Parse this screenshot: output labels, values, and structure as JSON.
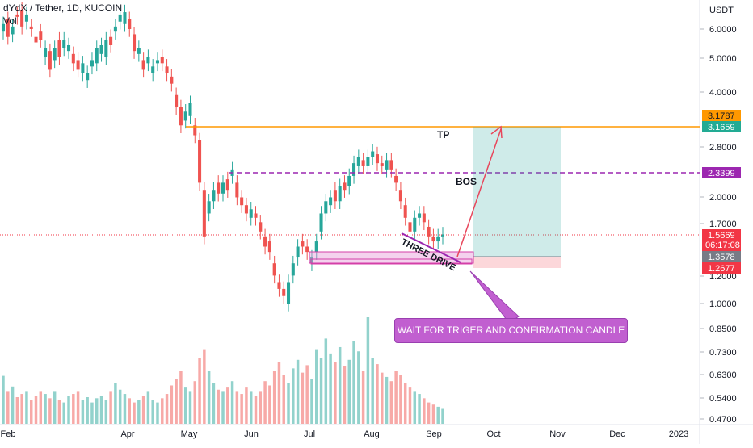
{
  "header": {
    "symbol_line": "dYdX / Tether, 1D, KUCOIN",
    "volume_line": "Vol"
  },
  "colors": {
    "up": "#26a69a",
    "down": "#ef5350",
    "tp_line": "#ff9800",
    "bos_line": "#9c27b0",
    "current_price": "#f23645",
    "stop_label": "#f23645",
    "entry_label": "#787b86",
    "tp_label": "#22ab94",
    "callout": "#c15fd0"
  },
  "chart_data": {
    "type": "candlestick",
    "symbol": "dYdX / Tether",
    "interval": "1D",
    "exchange": "KUCOIN",
    "y_scale": "log",
    "y_unit": "USDT",
    "y_ticks": [
      "6.0000",
      "5.0000",
      "4.0000",
      "2.8000",
      "2.0000",
      "1.7000",
      "1.2000",
      "1.0000",
      "0.8500",
      "0.7300",
      "0.6300",
      "0.5400",
      "0.4700"
    ],
    "x_ticks": [
      "Feb",
      "Apr",
      "May",
      "Jun",
      "Jul",
      "Aug",
      "Sep",
      "Oct",
      "Nov",
      "Dec",
      "2023"
    ],
    "price_labels": {
      "tp_upper": "3.1787",
      "tp": "3.1659",
      "bos": "2.3399",
      "current": "1.5669",
      "countdown": "06:17:08",
      "entry": "1.3578",
      "stop": "1.2677"
    },
    "annotations": {
      "tp": "TP",
      "bos": "BOS",
      "three_drive": "THREE DRIVE",
      "callout": "WAIT FOR TRIGER AND CONFIRMATION CANDLE"
    },
    "levels": {
      "tp": 3.1659,
      "bos": 2.3399,
      "current": 1.5669,
      "entry": 1.3578,
      "stop": 1.2677
    },
    "price_path": [
      [
        5.9,
        6.2
      ],
      [
        6.4,
        5.7
      ],
      [
        5.8,
        6.1
      ],
      [
        6.6,
        6.5
      ],
      [
        6.8,
        6.1
      ],
      [
        6.3,
        6.6
      ],
      [
        6.1,
        6.0
      ],
      [
        5.7,
        5.5
      ],
      [
        5.9,
        5.6
      ],
      [
        5.0,
        5.3
      ],
      [
        5.2,
        4.6
      ],
      [
        4.9,
        5.3
      ],
      [
        5.6,
        5.0
      ],
      [
        5.3,
        5.6
      ],
      [
        5.2,
        5.4
      ],
      [
        5.1,
        4.8
      ],
      [
        4.9,
        4.6
      ],
      [
        4.5,
        4.8
      ],
      [
        4.3,
        4.5
      ],
      [
        4.7,
        4.9
      ],
      [
        4.8,
        5.3
      ],
      [
        5.1,
        5.4
      ],
      [
        5.0,
        5.6
      ],
      [
        5.7,
        5.4
      ],
      [
        5.9,
        6.1
      ],
      [
        6.3,
        6.6
      ],
      [
        6.2,
        6.7
      ],
      [
        6.4,
        6.0
      ],
      [
        5.8,
        5.2
      ],
      [
        5.1,
        5.3
      ],
      [
        4.9,
        4.6
      ],
      [
        4.8,
        5.0
      ],
      [
        4.5,
        4.7
      ],
      [
        4.8,
        4.9
      ],
      [
        5.0,
        4.8
      ],
      [
        4.7,
        4.5
      ],
      [
        4.4,
        4.2
      ],
      [
        3.9,
        3.6
      ],
      [
        3.6,
        3.2
      ],
      [
        3.3,
        3.5
      ],
      [
        3.4,
        3.7
      ],
      [
        3.2,
        3.0
      ],
      [
        2.9,
        2.2
      ],
      [
        2.1,
        1.55
      ],
      [
        1.8,
        1.95
      ],
      [
        1.95,
        2.1
      ],
      [
        2.2,
        2.05
      ],
      [
        2.05,
        2.2
      ],
      [
        2.25,
        2.1
      ],
      [
        2.3,
        2.4
      ],
      [
        2.2,
        2.0
      ],
      [
        2.0,
        1.9
      ],
      [
        1.9,
        1.8
      ],
      [
        1.75,
        1.85
      ],
      [
        1.8,
        1.75
      ],
      [
        1.7,
        1.6
      ],
      [
        1.55,
        1.45
      ],
      [
        1.5,
        1.4
      ],
      [
        1.3,
        1.2
      ],
      [
        1.15,
        1.1
      ],
      [
        1.1,
        1.05
      ],
      [
        1.0,
        1.15
      ],
      [
        1.2,
        1.3
      ],
      [
        1.35,
        1.45
      ],
      [
        1.5,
        1.45
      ],
      [
        1.45,
        1.4
      ],
      [
        1.3,
        1.35
      ],
      [
        1.4,
        1.5
      ],
      [
        1.6,
        1.8
      ],
      [
        1.8,
        1.95
      ],
      [
        1.9,
        2.0
      ],
      [
        2.1,
        1.95
      ],
      [
        1.95,
        2.15
      ],
      [
        2.2,
        2.1
      ],
      [
        2.15,
        2.3
      ],
      [
        2.3,
        2.5
      ],
      [
        2.45,
        2.6
      ],
      [
        2.55,
        2.45
      ],
      [
        2.45,
        2.6
      ],
      [
        2.6,
        2.7
      ],
      [
        2.65,
        2.5
      ],
      [
        2.5,
        2.45
      ],
      [
        2.4,
        2.55
      ],
      [
        2.55,
        2.4
      ],
      [
        2.3,
        2.2
      ],
      [
        2.1,
        1.95
      ],
      [
        1.9,
        1.75
      ],
      [
        1.7,
        1.6
      ],
      [
        1.6,
        1.75
      ],
      [
        1.75,
        1.8
      ],
      [
        1.8,
        1.7
      ],
      [
        1.65,
        1.55
      ],
      [
        1.55,
        1.5
      ],
      [
        1.5,
        1.55
      ],
      [
        1.55,
        1.57
      ]
    ],
    "volume_relative": [
      0.45,
      0.3,
      0.35,
      0.25,
      0.28,
      0.3,
      0.22,
      0.26,
      0.3,
      0.28,
      0.24,
      0.3,
      0.22,
      0.2,
      0.26,
      0.28,
      0.3,
      0.22,
      0.25,
      0.2,
      0.24,
      0.26,
      0.22,
      0.3,
      0.38,
      0.32,
      0.28,
      0.24,
      0.2,
      0.22,
      0.26,
      0.3,
      0.22,
      0.2,
      0.24,
      0.28,
      0.36,
      0.42,
      0.5,
      0.34,
      0.3,
      0.4,
      0.62,
      0.7,
      0.5,
      0.38,
      0.32,
      0.3,
      0.34,
      0.4,
      0.3,
      0.28,
      0.34,
      0.3,
      0.26,
      0.3,
      0.4,
      0.36,
      0.5,
      0.58,
      0.46,
      0.38,
      0.52,
      0.6,
      0.48,
      0.55,
      0.42,
      0.7,
      0.62,
      0.8,
      0.66,
      0.58,
      0.72,
      0.54,
      0.6,
      0.78,
      0.68,
      0.5,
      1.0,
      0.62,
      0.56,
      0.48,
      0.44,
      0.4,
      0.5,
      0.46,
      0.38,
      0.34,
      0.3,
      0.28,
      0.24,
      0.2,
      0.18,
      0.16,
      0.14
    ]
  }
}
